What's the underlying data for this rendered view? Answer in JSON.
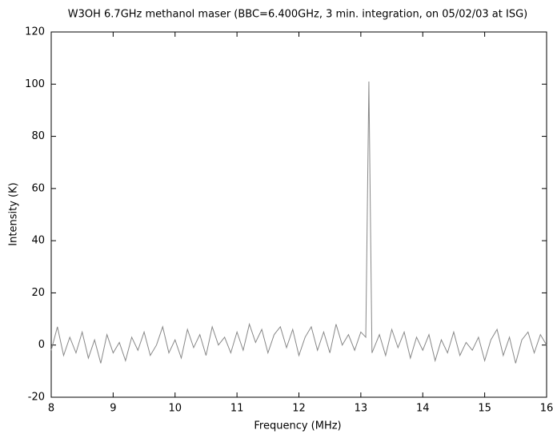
{
  "chart_data": {
    "type": "line",
    "title": "W3OH 6.7GHz methanol maser (BBC=6.400GHz, 3 min. integration, on 05/02/03 at ISG)",
    "x_label": "Frequency (MHz)",
    "y_label": "Intensity (K)",
    "x": [
      8.0,
      8.1,
      8.2,
      8.3,
      8.4,
      8.5,
      8.6,
      8.7,
      8.8,
      8.9,
      9.0,
      9.1,
      9.2,
      9.3,
      9.4,
      9.5,
      9.6,
      9.7,
      9.8,
      9.9,
      10.0,
      10.1,
      10.2,
      10.3,
      10.4,
      10.5,
      10.6,
      10.7,
      10.8,
      10.9,
      11.0,
      11.1,
      11.2,
      11.3,
      11.4,
      11.5,
      11.6,
      11.7,
      11.8,
      11.9,
      12.0,
      12.1,
      12.2,
      12.3,
      12.4,
      12.5,
      12.6,
      12.7,
      12.8,
      12.9,
      13.0,
      13.08,
      13.13,
      13.18,
      13.3,
      13.4,
      13.5,
      13.6,
      13.7,
      13.8,
      13.9,
      14.0,
      14.1,
      14.2,
      14.3,
      14.4,
      14.5,
      14.6,
      14.7,
      14.8,
      14.9,
      15.0,
      15.1,
      15.2,
      15.3,
      15.4,
      15.5,
      15.6,
      15.7,
      15.8,
      15.9,
      16.0
    ],
    "series": [
      {
        "color": "#888888",
        "values": [
          -2,
          7,
          -4,
          3,
          -3,
          5,
          -5,
          2,
          -7,
          4,
          -3,
          1,
          -6,
          3,
          -2,
          5,
          -4,
          0,
          7,
          -3,
          2,
          -5,
          6,
          -1,
          4,
          -4,
          7,
          0,
          3,
          -3,
          5,
          -2,
          8,
          1,
          6,
          -3,
          4,
          7,
          -1,
          6,
          -4,
          3,
          7,
          -2,
          5,
          -3,
          8,
          0,
          4,
          -2,
          5,
          3,
          101,
          -3,
          4,
          -4,
          6,
          -1,
          5,
          -5,
          3,
          -2,
          4,
          -6,
          2,
          -3,
          5,
          -4,
          1,
          -2,
          3,
          -6,
          2,
          6,
          -4,
          3,
          -7,
          2,
          5,
          -3,
          4,
          0
        ]
      }
    ],
    "xlim": [
      8,
      16
    ],
    "ylim": [
      -20,
      120
    ],
    "xticks": [
      8,
      9,
      10,
      11,
      12,
      13,
      14,
      15,
      16
    ],
    "yticks": [
      -20,
      0,
      20,
      40,
      60,
      80,
      100,
      120
    ]
  }
}
